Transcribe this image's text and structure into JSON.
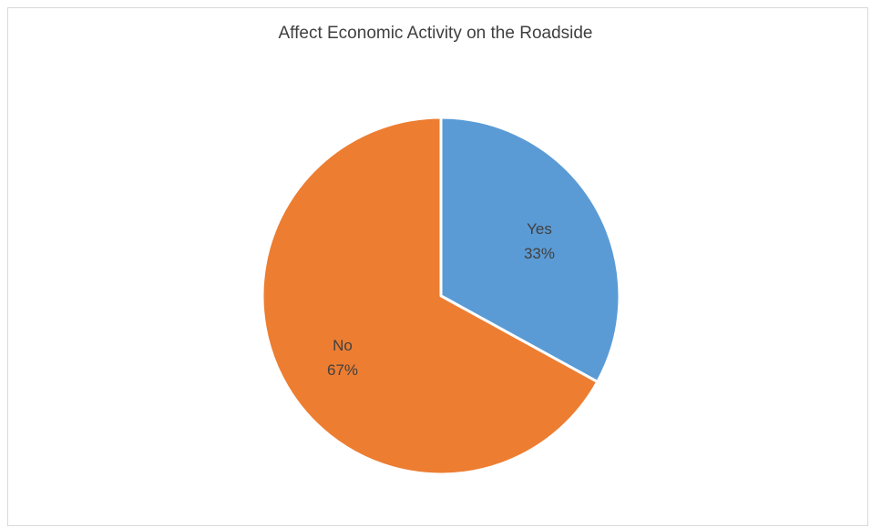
{
  "chart_data": {
    "type": "pie",
    "title": "Affect Economic Activity on the Roadside",
    "slices": [
      {
        "label": "Yes",
        "value": 33,
        "value_label": "33%",
        "color": "#5b9bd5"
      },
      {
        "label": "No",
        "value": 67,
        "value_label": "67%",
        "color": "#ed7d31"
      }
    ],
    "start_angle_deg": 0,
    "direction": "clockwise",
    "legend": "none",
    "labels": "inside"
  }
}
